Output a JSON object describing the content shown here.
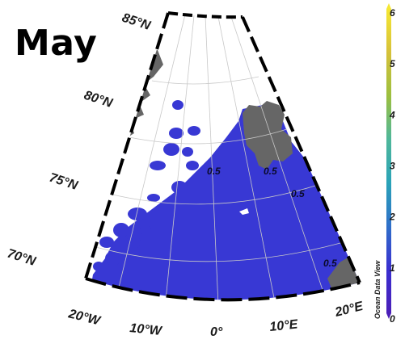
{
  "title": "May",
  "map": {
    "latitude_labels": [
      "85°N",
      "80°N",
      "75°N",
      "70°N"
    ],
    "longitude_labels": [
      "20°W",
      "10°W",
      "0°",
      "10°E",
      "20°E"
    ],
    "contour_labels": [
      "0.5",
      "0.5",
      "0.5",
      "0.5"
    ],
    "colors": {
      "land": "#666666",
      "ocean_fill": "#3a3ad6",
      "frame_dash": "#000000"
    }
  },
  "colorbar": {
    "ticks": [
      "6",
      "5",
      "4",
      "3",
      "2",
      "1",
      "0"
    ],
    "colors": [
      "#f5e733",
      "#d6c13a",
      "#9cbf3f",
      "#4fb79a",
      "#2aa3b8",
      "#2f6fc9",
      "#3a2fd0",
      "#4b1fb8"
    ]
  },
  "credit": "Ocean Data View"
}
